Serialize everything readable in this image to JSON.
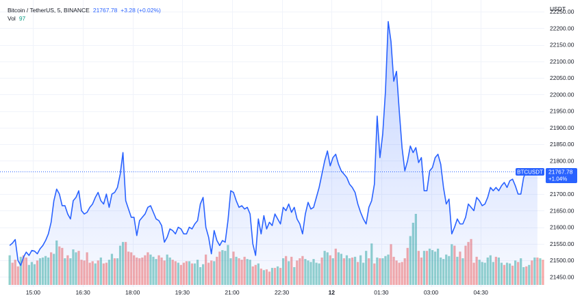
{
  "legend": {
    "symbol": "Bitcoin / TetherUS, 5, BINANCE",
    "last": "21767.78",
    "change": "+3.28 (+0.02%)",
    "vol_label": "Vol",
    "vol_value": "97"
  },
  "colors": {
    "line": "#2962ff",
    "area_top": "#2962ff",
    "grid": "#f0f3fa",
    "vol_up": "#26a69a",
    "vol_down": "#ef5350",
    "badge": "#2962ff",
    "axis_text": "#131722"
  },
  "chart_data": {
    "type": "area",
    "symbol": "BTCUSDT",
    "axis_unit": "USDT",
    "ylim": [
      21420,
      22285
    ],
    "y_ticks": [
      21450,
      21500,
      21550,
      21600,
      21650,
      21700,
      21750,
      21800,
      21850,
      21900,
      21950,
      22000,
      22050,
      22100,
      22150,
      22200,
      22250
    ],
    "y_tick_labels": [
      "21450.00",
      "21500.00",
      "21550.00",
      "21600.00",
      "21650.00",
      "21700.00",
      "21750.00",
      "21800.00",
      "21850.00",
      "21900.00",
      "21950.00",
      "22000.00",
      "22050.00",
      "22100.00",
      "22150.00",
      "22200.00",
      "22250.00"
    ],
    "x_ticks": [
      {
        "label": "15:00",
        "t": 8.5
      },
      {
        "label": "16:30",
        "t": 26.5
      },
      {
        "label": "18:00",
        "t": 44.5
      },
      {
        "label": "19:30",
        "t": 62.5
      },
      {
        "label": "21:00",
        "t": 80.5
      },
      {
        "label": "22:30",
        "t": 98.5
      },
      {
        "label": "12",
        "t": 116.5,
        "bold": true
      },
      {
        "label": "01:30",
        "t": 134.5
      },
      {
        "label": "03:00",
        "t": 152.5
      },
      {
        "label": "04:30",
        "t": 170.5
      }
    ],
    "t_range": [
      -3.5,
      193.5
    ],
    "last_value": 21767.78,
    "last_label": "21767.78",
    "badge_label": "BTCUSDT",
    "badge_change": "+1.04%",
    "grid": true,
    "series": [
      {
        "values": [
          21545,
          21552,
          21563,
          21500,
          21485,
          21510,
          21525,
          21515,
          21530,
          21528,
          21520,
          21535,
          21545,
          21560,
          21580,
          21615,
          21680,
          21715,
          21700,
          21665,
          21665,
          21640,
          21625,
          21680,
          21690,
          21710,
          21650,
          21640,
          21645,
          21660,
          21670,
          21690,
          21705,
          21680,
          21670,
          21700,
          21660,
          21700,
          21705,
          21720,
          21760,
          21825,
          21680,
          21655,
          21630,
          21630,
          21575,
          21620,
          21630,
          21640,
          21660,
          21665,
          21645,
          21625,
          21620,
          21605,
          21555,
          21570,
          21595,
          21590,
          21580,
          21600,
          21595,
          21580,
          21580,
          21600,
          21595,
          21610,
          21620,
          21670,
          21690,
          21600,
          21570,
          21520,
          21590,
          21560,
          21545,
          21560,
          21555,
          21620,
          21710,
          21705,
          21680,
          21660,
          21665,
          21655,
          21660,
          21640,
          21550,
          21515,
          21625,
          21580,
          21635,
          21595,
          21615,
          21605,
          21640,
          21625,
          21610,
          21660,
          21650,
          21670,
          21645,
          21660,
          21625,
          21610,
          21580,
          21640,
          21675,
          21655,
          21660,
          21690,
          21720,
          21760,
          21800,
          21830,
          21785,
          21810,
          21820,
          21790,
          21770,
          21760,
          21750,
          21730,
          21720,
          21705,
          21670,
          21645,
          21625,
          21610,
          21660,
          21680,
          21730,
          21935,
          21810,
          21880,
          22010,
          22220,
          22160,
          22040,
          22070,
          21950,
          21840,
          21770,
          21800,
          21845,
          21825,
          21840,
          21795,
          21810,
          21710,
          21710,
          21770,
          21780,
          21810,
          21820,
          21790,
          21720,
          21670,
          21685,
          21580,
          21600,
          21625,
          21610,
          21610,
          21630,
          21670,
          21660,
          21650,
          21690,
          21680,
          21665,
          21670,
          21690,
          21720,
          21710,
          21720,
          21710,
          21725,
          21735,
          21720,
          21740,
          21745,
          21725,
          21700,
          21700,
          21750,
          21770,
          21768,
          21768,
          21770,
          21768
        ]
      },
      {
        "name": "Vol",
        "values": [
          40,
          30,
          34,
          25,
          38,
          40,
          37,
          27,
          31,
          28,
          33,
          36,
          37,
          39,
          37,
          44,
          42,
          60,
          52,
          50,
          36,
          40,
          36,
          48,
          44,
          46,
          34,
          33,
          44,
          30,
          32,
          29,
          33,
          37,
          29,
          30,
          34,
          42,
          36,
          36,
          53,
          58,
          58,
          45,
          44,
          40,
          37,
          36,
          37,
          40,
          44,
          41,
          38,
          35,
          40,
          37,
          33,
          41,
          37,
          34,
          32,
          30,
          27,
          30,
          32,
          32,
          29,
          29,
          34,
          24,
          28,
          41,
          30,
          33,
          32,
          38,
          45,
          47,
          46,
          54,
          36,
          45,
          38,
          36,
          34,
          38,
          35,
          34,
          25,
          27,
          29,
          22,
          20,
          21,
          18,
          23,
          23,
          25,
          23,
          36,
          39,
          32,
          38,
          24,
          33,
          36,
          39,
          35,
          33,
          31,
          35,
          30,
          29,
          37,
          46,
          44,
          40,
          36,
          49,
          44,
          42,
          36,
          40,
          36,
          37,
          38,
          31,
          40,
          30,
          46,
          36,
          56,
          29,
          37,
          36,
          36,
          39,
          41,
          55,
          38,
          33,
          30,
          31,
          36,
          50,
          66,
          84,
          96,
          46,
          37,
          46,
          46,
          49,
          47,
          45,
          49,
          37,
          35,
          41,
          39,
          55,
          53,
          38,
          45,
          36,
          53,
          58,
          62,
          30,
          38,
          34,
          31,
          30,
          37,
          40,
          31,
          38,
          37,
          30,
          27,
          30,
          29,
          26,
          33,
          31,
          36,
          24,
          25,
          27,
          33,
          37,
          37,
          36,
          34,
          31,
          29,
          30,
          30,
          31,
          2
        ],
        "up": [
          1,
          0,
          0,
          0,
          1,
          0,
          0,
          1,
          1,
          1,
          0,
          1,
          1,
          1,
          1,
          0,
          1,
          1,
          0,
          0,
          1,
          0,
          1,
          1,
          1,
          0,
          0,
          0,
          0,
          0,
          0,
          1,
          0,
          1,
          0,
          0,
          1,
          1,
          0,
          1,
          1,
          1,
          0,
          0,
          0,
          0,
          0,
          0,
          0,
          0,
          0,
          1,
          1,
          1,
          0,
          0,
          0,
          1,
          1,
          0,
          0,
          1,
          0,
          0,
          0,
          1,
          0,
          1,
          1,
          1,
          1,
          0,
          0,
          0,
          1,
          0,
          0,
          1,
          1,
          1,
          1,
          0,
          1,
          0,
          0,
          0,
          1,
          1,
          0,
          0,
          1,
          0,
          1,
          0,
          0,
          1,
          0,
          1,
          0,
          1,
          0,
          1,
          0,
          1,
          0,
          0,
          0,
          1,
          1,
          1,
          1,
          1,
          1,
          0,
          1,
          1,
          0,
          1,
          0,
          1,
          1,
          0,
          1,
          1,
          0,
          1,
          0,
          1,
          1,
          1,
          0,
          1,
          0,
          1,
          0,
          1,
          1,
          1,
          0,
          0,
          0,
          0,
          0,
          0,
          0,
          1,
          1,
          1,
          0,
          0,
          1,
          0,
          1,
          1,
          1,
          1,
          1,
          1,
          1,
          1,
          1,
          0,
          1,
          0,
          1,
          0,
          0,
          0,
          0,
          0,
          1,
          1,
          1,
          1,
          1,
          1,
          0,
          1,
          1,
          0,
          1,
          1,
          0,
          1,
          0,
          1,
          1,
          0,
          1,
          0,
          1,
          0,
          1,
          0,
          1,
          1,
          1,
          1,
          1,
          0
        ]
      }
    ]
  }
}
